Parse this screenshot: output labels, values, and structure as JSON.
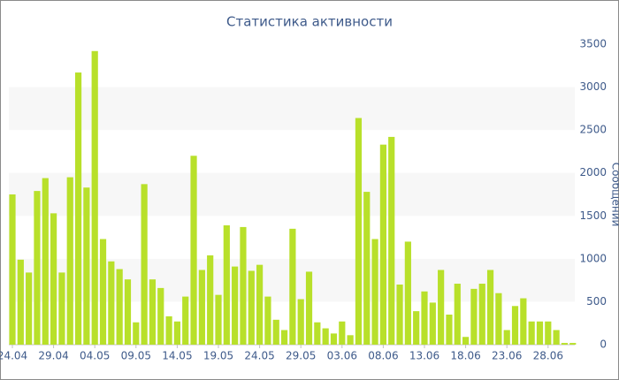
{
  "chart_data": {
    "type": "bar",
    "title": "Статистика активности",
    "y_label": "Сообщений",
    "categories": [
      "24.04",
      null,
      null,
      null,
      null,
      "29.04",
      null,
      null,
      null,
      null,
      "04.05",
      null,
      null,
      null,
      null,
      "09.05",
      null,
      null,
      null,
      null,
      "14.05",
      null,
      null,
      null,
      null,
      "19.05",
      null,
      null,
      null,
      null,
      "24.05",
      null,
      null,
      null,
      null,
      "29.05",
      null,
      null,
      null,
      null,
      "03.06",
      null,
      null,
      null,
      null,
      "08.06",
      null,
      null,
      null,
      null,
      "13.06",
      null,
      null,
      null,
      null,
      "18.06",
      null,
      null,
      null,
      null,
      "23.06",
      null,
      null,
      null,
      null,
      "28.06",
      null,
      null,
      null
    ],
    "values": [
      1750,
      990,
      840,
      1790,
      1940,
      1530,
      840,
      1950,
      3170,
      1830,
      3420,
      1230,
      970,
      880,
      760,
      260,
      1870,
      760,
      660,
      330,
      270,
      560,
      2200,
      870,
      1040,
      580,
      1390,
      910,
      1370,
      860,
      930,
      560,
      290,
      170,
      1350,
      530,
      850,
      260,
      190,
      130,
      270,
      110,
      2640,
      1780,
      1230,
      2330,
      2420,
      700,
      1200,
      390,
      620,
      490,
      870,
      350,
      710,
      90,
      650,
      710,
      870,
      600,
      170,
      450,
      540,
      270,
      270,
      270,
      170,
      20,
      20
    ],
    "color": "#b8e02a",
    "ylim": [
      0,
      3500
    ],
    "yticks": [
      0,
      500,
      1000,
      1500,
      2000,
      2500,
      3000,
      3500
    ],
    "grid": true
  }
}
